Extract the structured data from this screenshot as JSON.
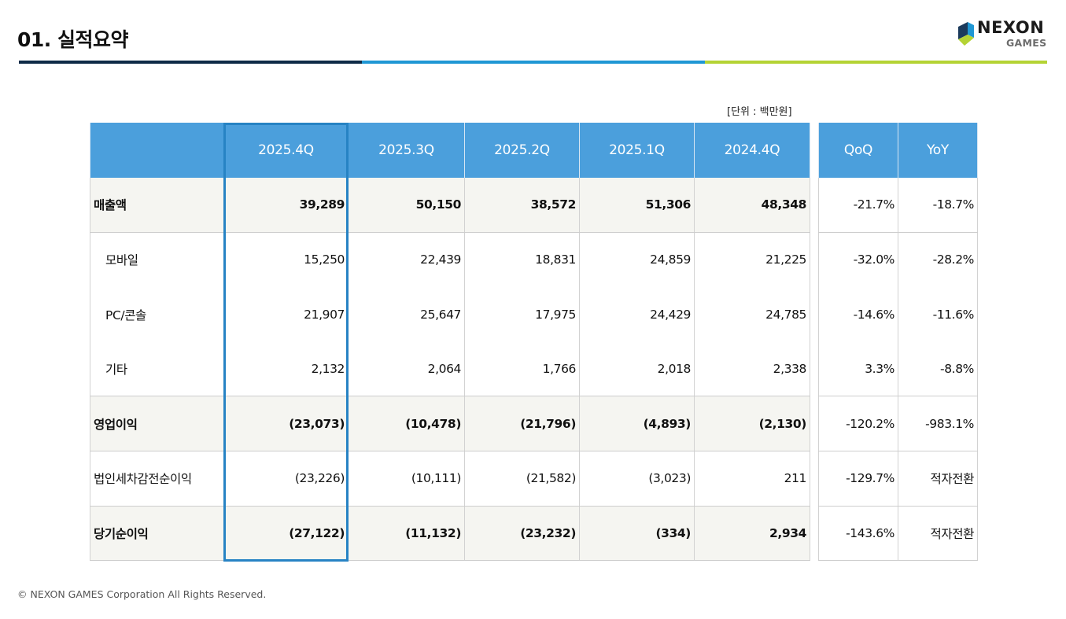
{
  "page": {
    "title": "01. 실적요약"
  },
  "logo": {
    "line1": "NEXON",
    "line2": "GAMES",
    "colors": {
      "dark": "#1b3a5c",
      "blue": "#1f97d4",
      "lime": "#b4d334"
    }
  },
  "unit_label": "[단위 : 백만원]",
  "table": {
    "columns": [
      "2025.4Q",
      "2025.3Q",
      "2025.2Q",
      "2025.1Q",
      "2024.4Q"
    ],
    "change_columns": [
      "QoQ",
      "YoY"
    ],
    "rows": [
      {
        "label": "매출액",
        "values": [
          "39,289",
          "50,150",
          "38,572",
          "51,306",
          "48,348"
        ],
        "qoq": "-21.7%",
        "yoy": "-18.7%"
      },
      {
        "label": "모바일",
        "values": [
          "15,250",
          "22,439",
          "18,831",
          "24,859",
          "21,225"
        ],
        "qoq": "-32.0%",
        "yoy": "-28.2%"
      },
      {
        "label": "PC/콘솔",
        "values": [
          "21,907",
          "25,647",
          "17,975",
          "24,429",
          "24,785"
        ],
        "qoq": "-14.6%",
        "yoy": "-11.6%"
      },
      {
        "label": "기타",
        "values": [
          "2,132",
          "2,064",
          "1,766",
          "2,018",
          "2,338"
        ],
        "qoq": "3.3%",
        "yoy": "-8.8%"
      },
      {
        "label": "영업이익",
        "values": [
          "(23,073)",
          "(10,478)",
          "(21,796)",
          "(4,893)",
          "(2,130)"
        ],
        "qoq": "-120.2%",
        "yoy": "-983.1%"
      },
      {
        "label": "법인세차감전순이익",
        "values": [
          "(23,226)",
          "(10,111)",
          "(21,582)",
          "(3,023)",
          "211"
        ],
        "qoq": "-129.7%",
        "yoy": "적자전환"
      },
      {
        "label": "당기순이익",
        "values": [
          "(27,122)",
          "(11,132)",
          "(23,232)",
          "(334)",
          "2,934"
        ],
        "qoq": "-143.6%",
        "yoy": "적자전환"
      }
    ]
  },
  "colors": {
    "header_bg": "#4b9fdc",
    "highlight_border": "#2783c4",
    "bold_row_bg": "#f5f5f1"
  },
  "footer": "© NEXON GAMES Corporation All Rights Reserved."
}
